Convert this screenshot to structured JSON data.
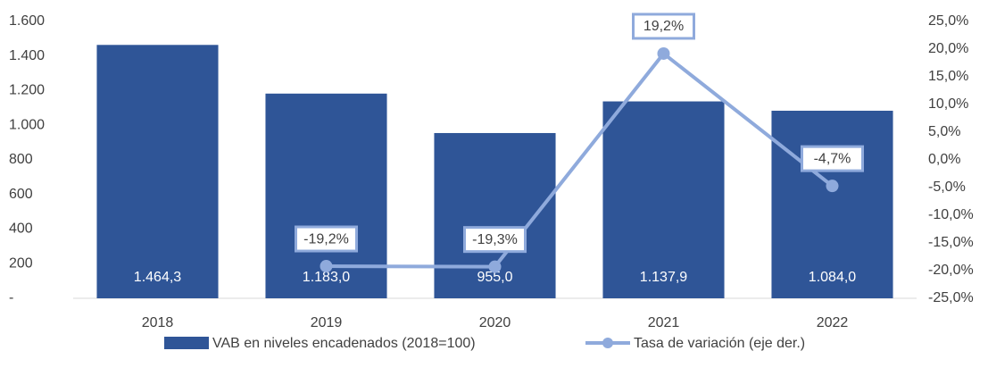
{
  "chart_data": {
    "type": "bar",
    "categories": [
      "2018",
      "2019",
      "2020",
      "2021",
      "2022"
    ],
    "series": [
      {
        "name": "VAB en niveles encadenados (2018=100)",
        "color": "#2f5597",
        "type": "bar",
        "values": [
          1464.3,
          1183.0,
          955.0,
          1137.9,
          1084.0
        ],
        "value_labels": [
          "1.464,3",
          "1.183,0",
          "955,0",
          "1.137,9",
          "1.084,0"
        ]
      },
      {
        "name": "Tasa de variación (eje der.)",
        "color": "#8faadc",
        "type": "line",
        "axis": "y2",
        "values": [
          null,
          -19.2,
          -19.3,
          19.2,
          -4.7
        ],
        "value_labels": [
          null,
          "-19,2%",
          "-19,3%",
          "19,2%",
          "-4,7%"
        ]
      }
    ],
    "ylim": [
      0,
      1600
    ],
    "yticks": [
      {
        "value": 0,
        "label": "-"
      },
      200,
      400,
      600,
      800,
      {
        "value": 1000,
        "label": "1.000"
      },
      {
        "value": 1200,
        "label": "1.200"
      },
      {
        "value": 1400,
        "label": "1.400"
      },
      {
        "value": 1600,
        "label": "1.600"
      }
    ],
    "y2lim": [
      -25,
      25
    ],
    "y2ticks": [
      {
        "value": -25,
        "label": "-25,0%"
      },
      {
        "value": -20,
        "label": "-20,0%"
      },
      {
        "value": -15,
        "label": "-15,0%"
      },
      {
        "value": -10,
        "label": "-10,0%"
      },
      {
        "value": -5,
        "label": "-5,0%"
      },
      {
        "value": 0,
        "label": "0,0%"
      },
      {
        "value": 5,
        "label": "5,0%"
      },
      {
        "value": 10,
        "label": "10,0%"
      },
      {
        "value": 15,
        "label": "15,0%"
      },
      {
        "value": 20,
        "label": "20,0%"
      },
      {
        "value": 25,
        "label": "25,0%"
      }
    ],
    "legend": "bottom"
  }
}
